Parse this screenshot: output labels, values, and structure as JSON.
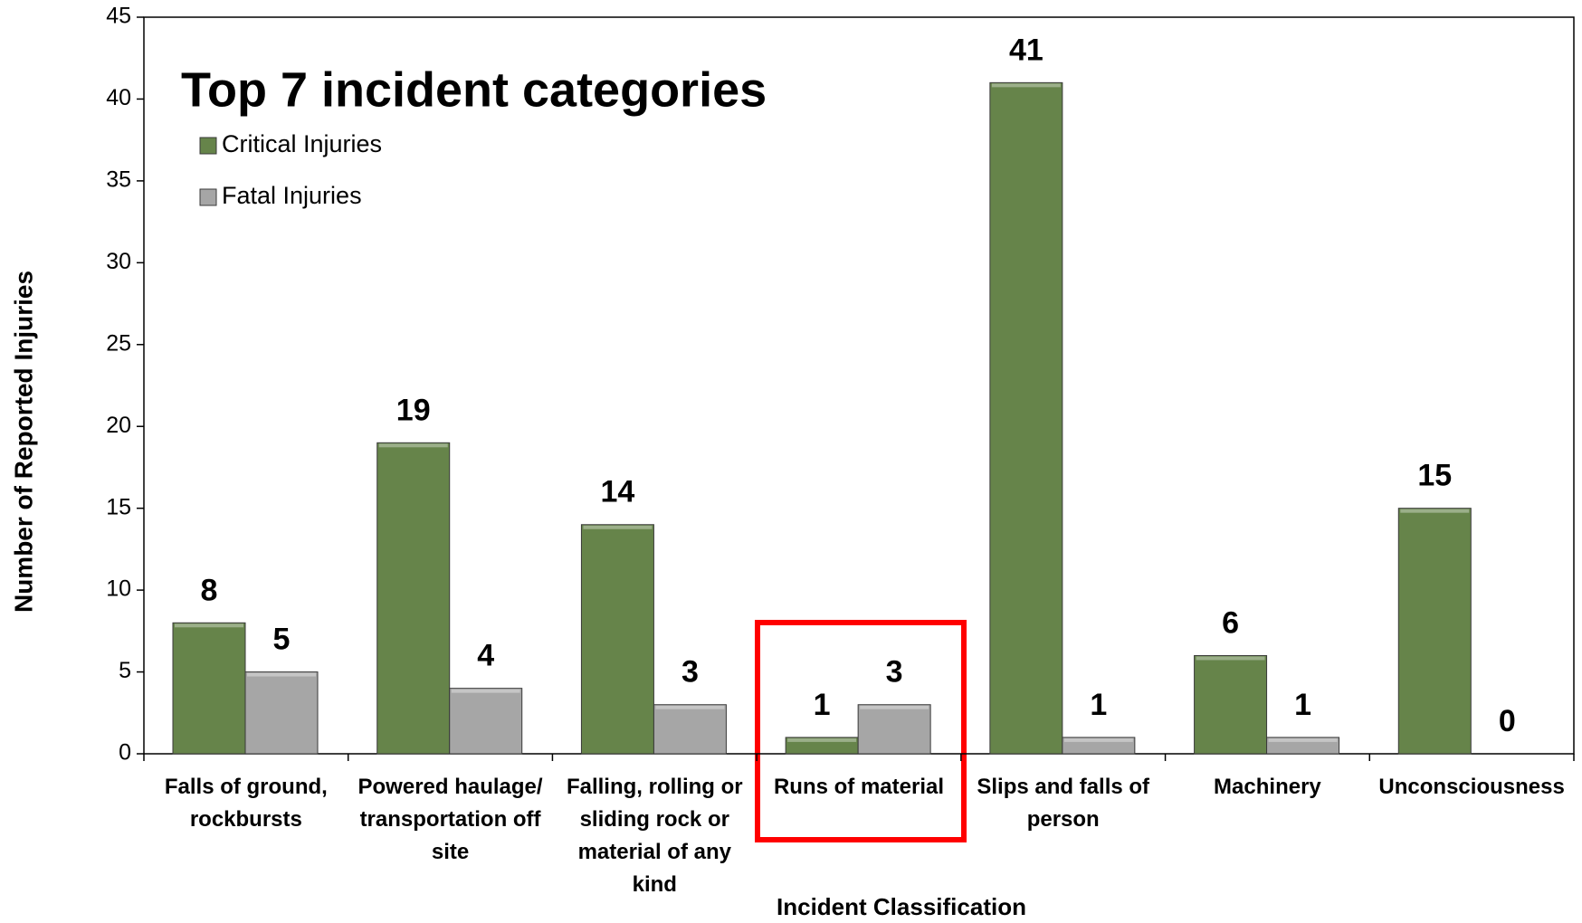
{
  "chart_data": {
    "type": "bar",
    "title": "Top 7 incident categories",
    "x_label": "Incident Classification",
    "y_label": "Number of Reported Injuries",
    "categories": [
      "Falls of ground, rockbursts",
      "Powered haulage/ transportation off site",
      "Falling, rolling or sliding rock or material of any kind",
      "Runs of material",
      "Slips and falls of person",
      "Machinery",
      "Unconsciousness"
    ],
    "series": [
      {
        "name": "Critical Injuries",
        "color": "#66844a",
        "values": [
          8,
          19,
          14,
          1,
          41,
          6,
          15
        ]
      },
      {
        "name": "Fatal Injuries",
        "color": "#a6a6a6",
        "values": [
          5,
          4,
          3,
          3,
          1,
          1,
          0
        ]
      }
    ],
    "ylim": [
      0,
      45
    ],
    "yticks": [
      0,
      5,
      10,
      15,
      20,
      25,
      30,
      35,
      40,
      45
    ],
    "grid": false,
    "legend": "upper left"
  }
}
